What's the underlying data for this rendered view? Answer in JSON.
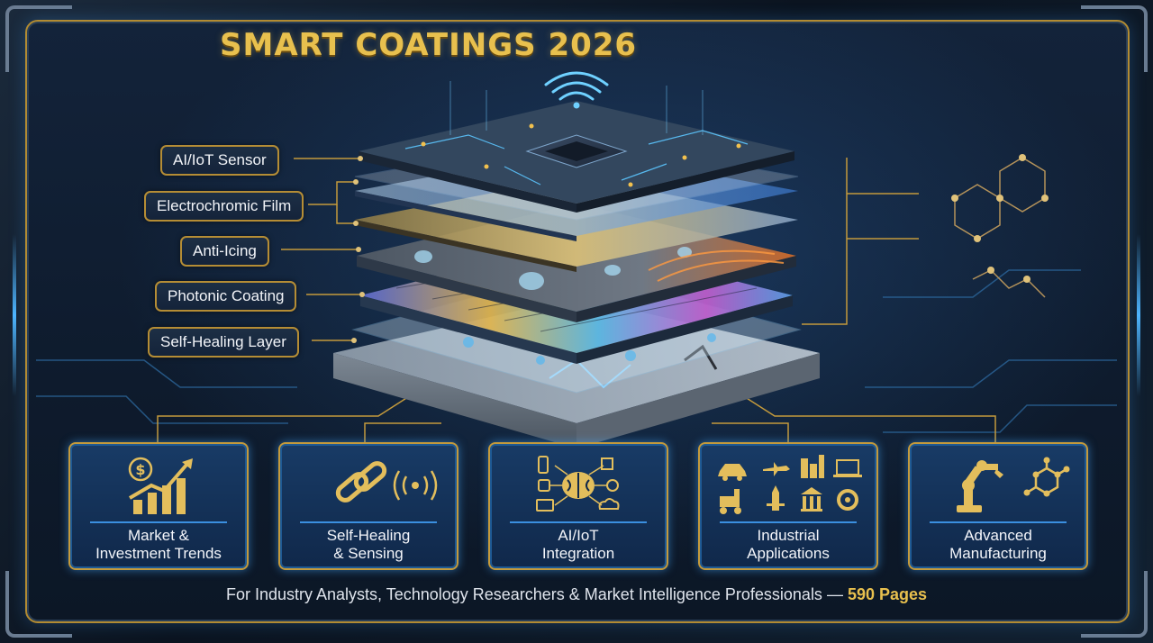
{
  "title": "SMART COATINGS 2026",
  "layers": [
    {
      "label": "AI/IoT Sensor"
    },
    {
      "label": "Electrochromic Film"
    },
    {
      "label": "Anti-Icing"
    },
    {
      "label": "Photonic Coating"
    },
    {
      "label": "Self-Healing Layer"
    }
  ],
  "cards": [
    {
      "line1": "Market &",
      "line2": "Investment Trends",
      "icon": "dollar-growth-chart-icon"
    },
    {
      "line1": "Self-Healing",
      "line2": "& Sensing",
      "icon": "chain-link-signal-icon"
    },
    {
      "line1": "AI/IoT",
      "line2": "Integration",
      "icon": "brain-network-icon"
    },
    {
      "line1": "Industrial",
      "line2": "Applications",
      "icon": "industry-icons-grid"
    },
    {
      "line1": "Advanced",
      "line2": "Manufacturing",
      "icon": "robot-arm-molecule-icon"
    }
  ],
  "footer": {
    "text": "For Industry Analysts, Technology Researchers & Market Intelligence Professionals — ",
    "pages": "590 Pages"
  },
  "colors": {
    "gold": "#e8c04e",
    "frame_gold": "#b58d35",
    "glow_blue": "#4fb6ff",
    "background": "#0d1622"
  }
}
